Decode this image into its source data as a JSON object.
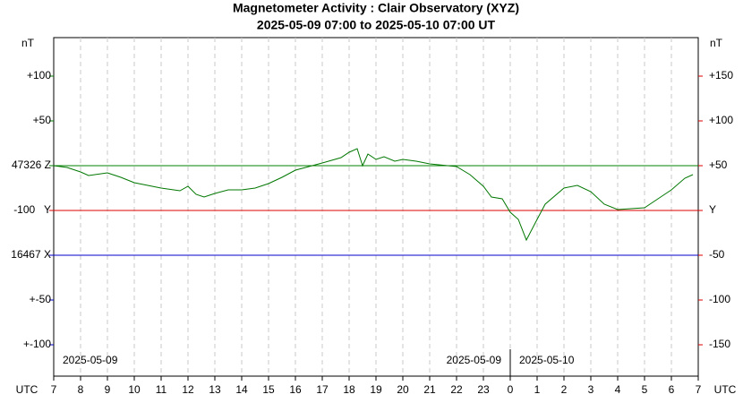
{
  "chart_data": {
    "type": "line",
    "title": "Magnetometer Activity : Clair Observatory (XYZ)",
    "subtitle": "2025-05-09 07:00 to 2025-05-10 07:00 UT",
    "unit_left": "nT",
    "unit_right": "nT",
    "x_axis_label": "UTC",
    "xlim": [
      0,
      24
    ],
    "xticks": [
      {
        "value": 0,
        "label": "7"
      },
      {
        "value": 1,
        "label": "8"
      },
      {
        "value": 2,
        "label": "9"
      },
      {
        "value": 3,
        "label": "10"
      },
      {
        "value": 4,
        "label": "11"
      },
      {
        "value": 5,
        "label": "12"
      },
      {
        "value": 6,
        "label": "13"
      },
      {
        "value": 7,
        "label": "14"
      },
      {
        "value": 8,
        "label": "15"
      },
      {
        "value": 9,
        "label": "16"
      },
      {
        "value": 10,
        "label": "17"
      },
      {
        "value": 11,
        "label": "18"
      },
      {
        "value": 12,
        "label": "19"
      },
      {
        "value": 13,
        "label": "20"
      },
      {
        "value": 14,
        "label": "21"
      },
      {
        "value": 15,
        "label": "22"
      },
      {
        "value": 16,
        "label": "23"
      },
      {
        "value": 17,
        "label": "0"
      },
      {
        "value": 18,
        "label": "1"
      },
      {
        "value": 19,
        "label": "2"
      },
      {
        "value": 20,
        "label": "3"
      },
      {
        "value": 21,
        "label": "4"
      },
      {
        "value": 22,
        "label": "5"
      },
      {
        "value": 23,
        "label": "6"
      },
      {
        "value": 24,
        "label": "7"
      }
    ],
    "ylim": [
      -185,
      193
    ],
    "yticks": [
      {
        "value": 150,
        "label": "+150"
      },
      {
        "value": 100,
        "label": "+100"
      },
      {
        "value": 50,
        "label": "+50"
      },
      {
        "value": 0,
        "label": "Y"
      },
      {
        "value": -50,
        "label": "-50"
      },
      {
        "value": -100,
        "label": "-100"
      },
      {
        "value": -150,
        "label": "-150"
      }
    ],
    "yticks_color": "#dd0000",
    "yticks_left": [
      {
        "value": 150,
        "label": "+100",
        "color": "#008000"
      },
      {
        "value": 100,
        "label": "+50",
        "color": "#008000"
      },
      {
        "value": 50,
        "label": "47326 Z",
        "color": "#008000"
      },
      {
        "value": 0,
        "label": "-100   Y",
        "color": "#dd0000"
      },
      {
        "value": -50,
        "label": "16467 X",
        "color": "#0000cc"
      },
      {
        "value": -100,
        "label": "+-50",
        "color": "#0000cc"
      },
      {
        "value": -150,
        "label": "+-100",
        "color": "#0000cc"
      }
    ],
    "reference_lines": [
      {
        "value": 50,
        "color": "#008000"
      },
      {
        "value": 0,
        "color": "#dd0000"
      },
      {
        "value": -50,
        "color": "#0000cc"
      }
    ],
    "grid": true,
    "day_boundary": 17,
    "date_labels": [
      {
        "text": "2025-05-09",
        "x": 0,
        "anchor": "start"
      },
      {
        "text": "2025-05-09",
        "x": 17,
        "anchor": "end"
      },
      {
        "text": "2025-05-10",
        "x": 17,
        "anchor": "start"
      }
    ],
    "x": [
      0,
      0.5,
      1,
      1.3,
      2,
      2.5,
      3,
      4,
      4.7,
      5,
      5.3,
      5.6,
      6,
      6.5,
      7,
      7.5,
      8,
      8.5,
      9,
      9.5,
      10,
      10.7,
      11,
      11.3,
      11.5,
      11.7,
      12,
      12.3,
      12.7,
      13,
      13.5,
      14,
      15,
      15.5,
      16,
      16.3,
      16.7,
      17,
      17.3,
      17.6,
      18,
      18.3,
      19,
      19.5,
      20,
      20.5,
      21,
      21.5,
      22,
      22.5,
      23,
      23.5,
      23.8
    ],
    "series": [
      {
        "color": "#007700",
        "values": [
          50,
          48,
          43,
          39,
          42,
          37,
          31,
          25,
          22,
          27,
          18,
          15,
          19,
          23,
          23,
          25,
          30,
          37,
          45,
          49,
          53,
          59,
          65,
          69,
          50,
          63,
          57,
          60,
          55,
          57,
          55,
          52,
          49,
          40,
          27,
          15,
          13,
          -2,
          -10,
          -33,
          -10,
          7,
          25,
          28,
          21,
          7,
          1,
          2,
          3,
          13,
          23,
          36,
          40
        ]
      }
    ]
  }
}
